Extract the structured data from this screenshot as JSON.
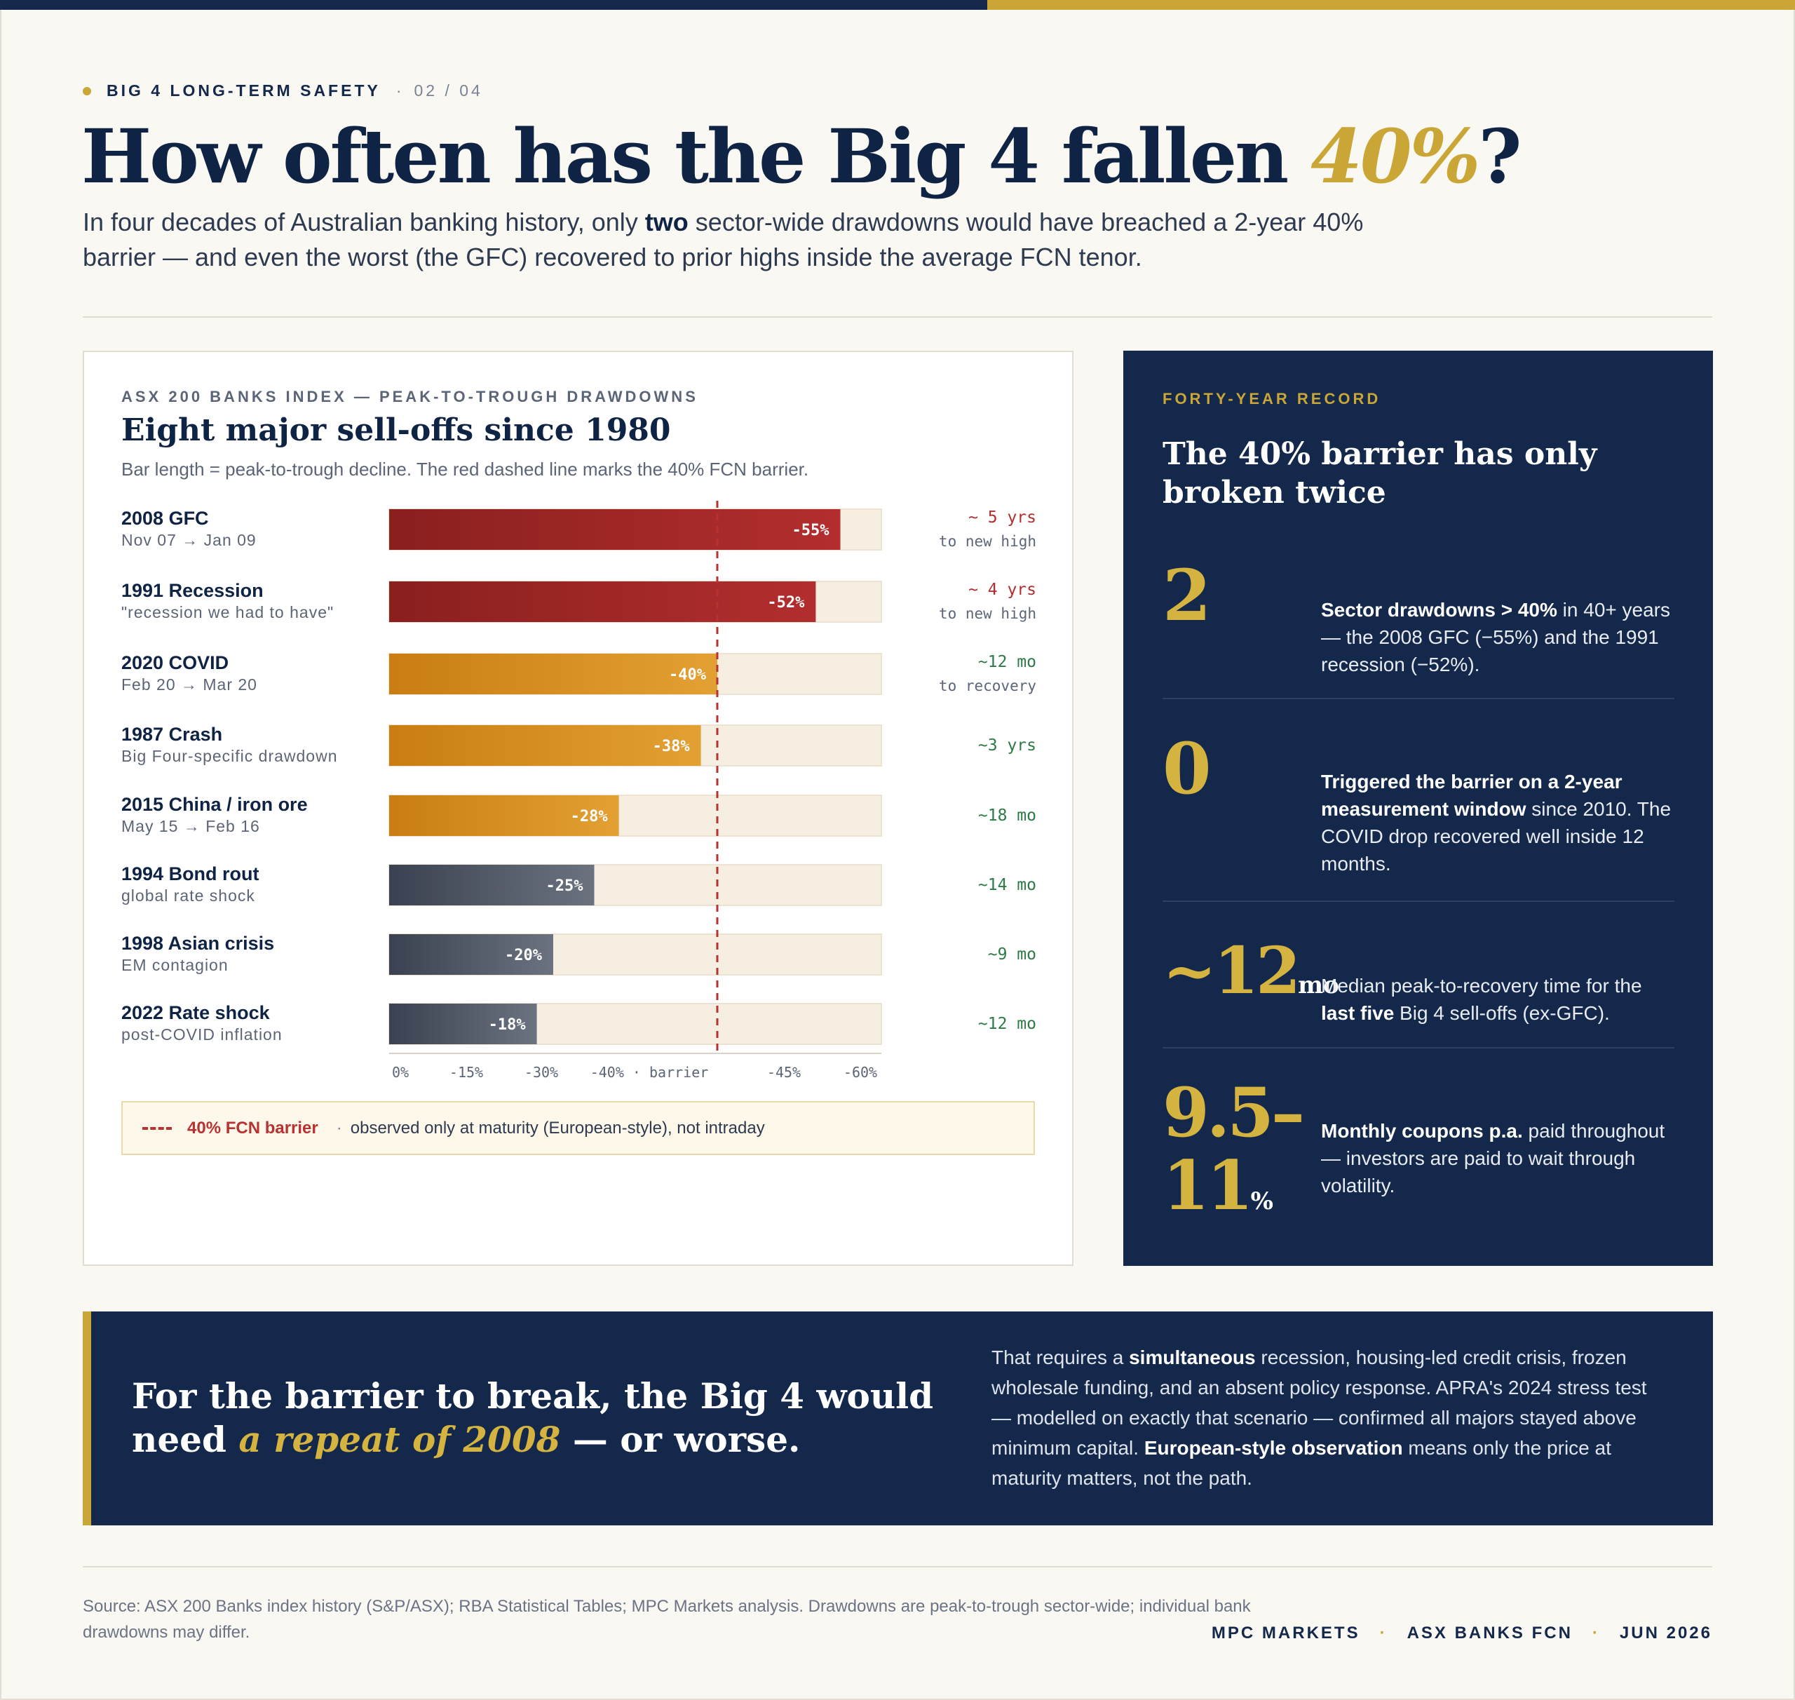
{
  "header": {
    "eyebrow": "BIG 4 LONG-TERM SAFETY",
    "page_counter": "02 / 04",
    "headline_pre": "How often has the Big 4 fallen ",
    "headline_accent": "40%",
    "headline_post": "?",
    "subtitle_1": "In four decades of Australian banking history, only ",
    "subtitle_bold": "two",
    "subtitle_2": " sector-wide drawdowns would have breached a 2-year 40% barrier — and even the worst (the GFC) recovered to prior highs inside the average FCN tenor."
  },
  "chart_card": {
    "eyebrow": "ASX 200 BANKS INDEX — PEAK-TO-TROUGH DRAWDOWNS",
    "title": "Eight major sell-offs since 1980",
    "subtitle": "Bar length = peak-to-trough decline. The red dashed line marks the 40% FCN barrier.",
    "legend_label": "40% FCN barrier",
    "legend_text": "observed only at maturity (European-style), not intraday"
  },
  "chart_data": {
    "type": "bar",
    "orientation": "horizontal",
    "title": "Eight major sell-offs since 1980",
    "categories": [
      "2008 GFC",
      "1991 Recession",
      "2020 COVID",
      "1987 Crash",
      "2015 China / iron ore",
      "1994 Bond rout",
      "1998 Asian crisis",
      "2022 Rate shock"
    ],
    "sublabels": [
      "Nov 07 → Jan 09",
      "\"recession we had to have\"",
      "Feb 20 → Mar 20",
      "Big Four-specific drawdown",
      "May 15 → Feb 16",
      "global rate shock",
      "EM contagion",
      "post-COVID inflation"
    ],
    "values": [
      55,
      52,
      40,
      38,
      28,
      25,
      20,
      18
    ],
    "value_labels": [
      "-55%",
      "-52%",
      "-40%",
      "-38%",
      "-28%",
      "-25%",
      "-20%",
      "-18%"
    ],
    "tiers": [
      "breach",
      "breach",
      "near",
      "near",
      "near",
      "mild",
      "mild",
      "mild"
    ],
    "recovery": [
      "~ 5 yrs",
      "~ 4 yrs",
      "~12 mo",
      "~3 yrs",
      "~18 mo",
      "~14 mo",
      "~9 mo",
      "~12 mo"
    ],
    "recovery_notes": [
      "to new high",
      "to new high",
      "to recovery",
      "",
      "",
      "",
      "",
      ""
    ],
    "x_ticks": [
      "0%",
      "-15%",
      "-30%",
      "-40% · barrier",
      "-45%",
      "-60%"
    ],
    "xlim": [
      0,
      60
    ],
    "barrier": 40,
    "colors": {
      "breach": [
        "#8a1f1f",
        "#b32e2e"
      ],
      "near": [
        "#c97d12",
        "#e3a033"
      ],
      "mild": [
        "#3a4150",
        "#6b7280"
      ],
      "track": "#f6eee0",
      "barrier_line": "#b83231",
      "recovery_breach": "#b32e2e",
      "recovery_ok": "#2c7a45"
    }
  },
  "record": {
    "eyebrow": "FORTY-YEAR RECORD",
    "title": "The 40% barrier has only broken twice",
    "stats": [
      {
        "value": "2",
        "unit": "",
        "desc_bold": "Sector drawdowns > 40%",
        "desc": " in 40+ years — the 2008 GFC (−55%) and the 1991 recession (−52%)."
      },
      {
        "value": "0",
        "unit": "",
        "desc_bold": "Triggered the barrier on a 2-year measurement window",
        "desc": " since 2010. The COVID drop recovered well inside 12 months."
      },
      {
        "value": "~12",
        "unit": "mo",
        "desc_pre": "Median peak-to-recovery time for the ",
        "desc_bold": "last five",
        "desc": " Big 4 sell-offs (ex-GFC)."
      },
      {
        "value_1": "9.5–",
        "value_2": "11",
        "unit": "%",
        "desc_bold": "Monthly coupons p.a.",
        "desc": " paid throughout — investors are paid to wait through volatility."
      }
    ]
  },
  "callout": {
    "quote_pre": "For the barrier to break, the Big 4 would need ",
    "quote_accent": "a repeat of 2008",
    "quote_post": " — or worse.",
    "body_1": "That requires a ",
    "body_bold_1": "simultaneous",
    "body_2": " recession, housing-led credit crisis, frozen wholesale funding, and an absent policy response. APRA's 2024 stress test — modelled on exactly that scenario — confirmed all majors stayed above minimum capital. ",
    "body_bold_2": "European-style observation",
    "body_3": " means only the price at maturity matters, not the path."
  },
  "footer": {
    "source": "Source: ASX 200 Banks index history (S&P/ASX); RBA Statistical Tables; MPC Markets analysis. Drawdowns are peak-to-trough sector-wide; individual bank drawdowns may differ.",
    "brand_1": "MPC MARKETS",
    "brand_2": "ASX BANKS FCN",
    "brand_3": "JUN 2026"
  }
}
